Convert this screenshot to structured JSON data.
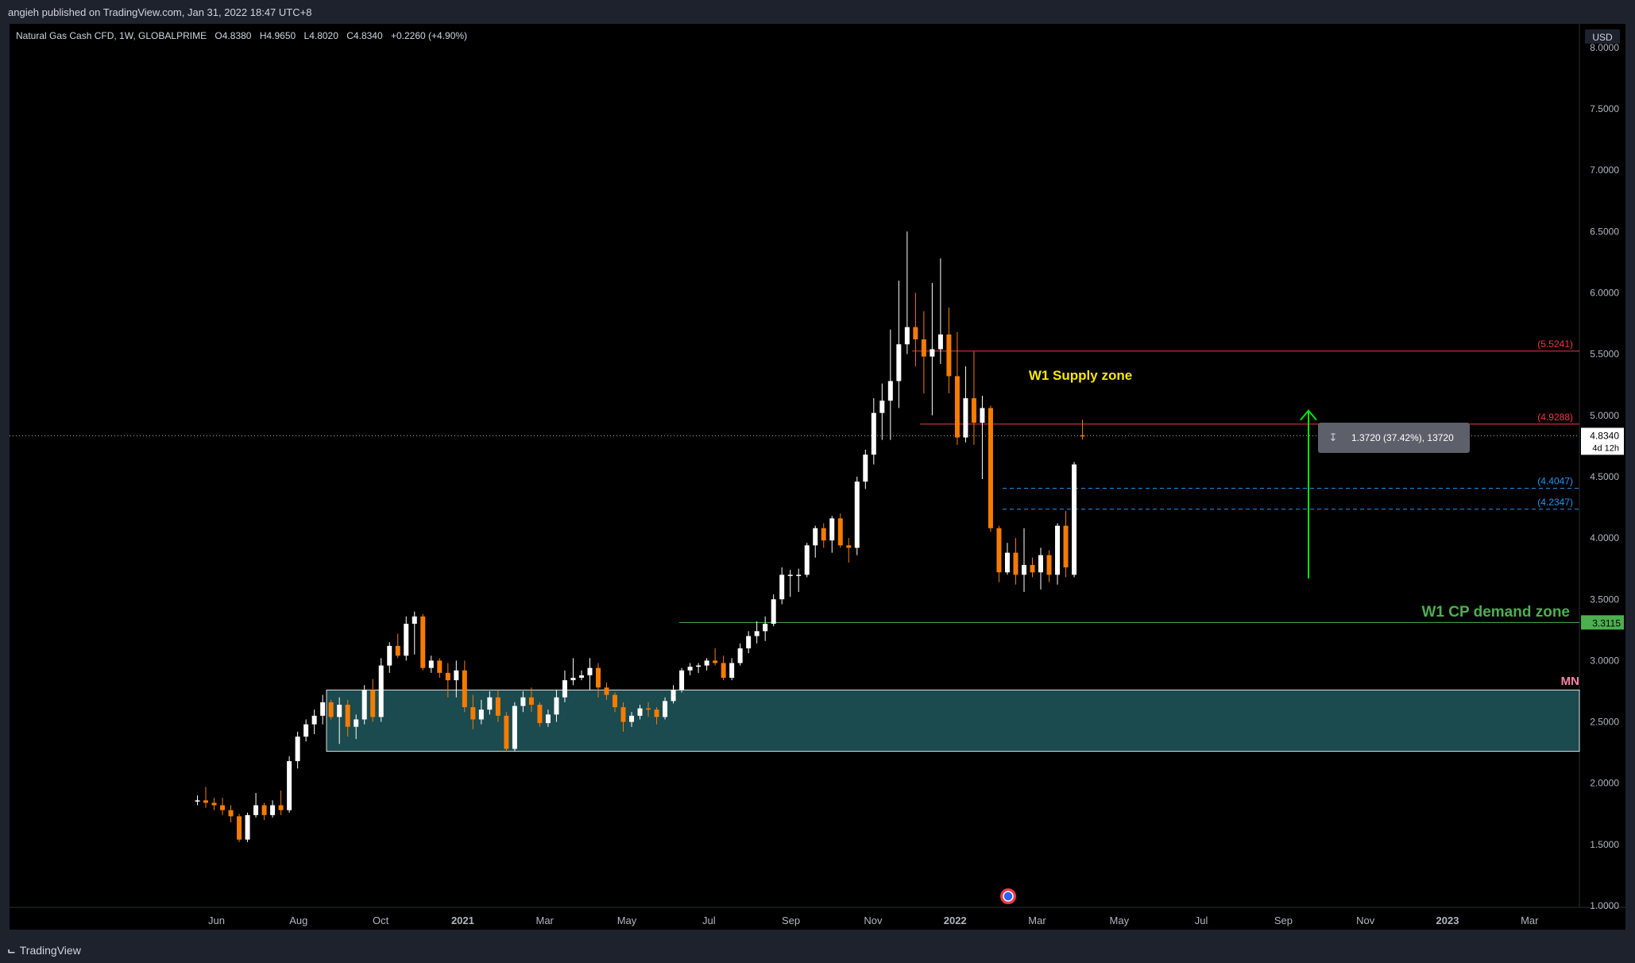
{
  "header": {
    "published_by": "angieh published on TradingView.com, Jan 31, 2022 18:47 UTC+8"
  },
  "legend": {
    "symbol": "Natural Gas Cash CFD, 1W, GLOBALPRIME",
    "open": "O4.8380",
    "high": "H4.9650",
    "low": "L4.8020",
    "close": "C4.8340",
    "change": "+0.2260 (+4.90%)"
  },
  "footer": {
    "brand": "TradingView",
    "brand_icon": "tradingview-logo-icon"
  },
  "price_axis": {
    "currency": "USD",
    "last_price": "4.8340",
    "countdown": "4d 12h",
    "ticks": [
      "8.0000",
      "7.5000",
      "7.0000",
      "6.5000",
      "6.0000",
      "5.5000",
      "5.0000",
      "4.5000",
      "4.0000",
      "3.5000",
      "3.0000",
      "2.5000",
      "2.0000",
      "1.5000",
      "1.0000"
    ]
  },
  "colors": {
    "background": "#000000",
    "up_candle": "#ffffff",
    "down_candle": "#f57c00",
    "supply_line": "#f23645",
    "level_blue": "#2196f3",
    "demand_line": "#4caf50",
    "zone_fill": "#1b4a4f",
    "supply_label": "#f7e600",
    "demand_label": "#4caf50",
    "measure_arrow": "#00e600"
  },
  "chart_data": {
    "type": "candlestick",
    "timeframe": "1W",
    "ylim": [
      1.0,
      8.2
    ],
    "time_labels": [
      "Jun",
      "Aug",
      "Oct",
      "2021",
      "Mar",
      "May",
      "Jul",
      "Sep",
      "Nov",
      "2022",
      "Mar",
      "May",
      "Jul",
      "Sep",
      "Nov",
      "2023",
      "Mar"
    ],
    "candles": [
      {
        "o": 1.85,
        "h": 1.9,
        "l": 1.82,
        "c": 1.86
      },
      {
        "o": 1.86,
        "h": 1.97,
        "l": 1.8,
        "c": 1.84
      },
      {
        "o": 1.84,
        "h": 1.88,
        "l": 1.78,
        "c": 1.82
      },
      {
        "o": 1.82,
        "h": 1.88,
        "l": 1.74,
        "c": 1.78
      },
      {
        "o": 1.78,
        "h": 1.82,
        "l": 1.68,
        "c": 1.73
      },
      {
        "o": 1.73,
        "h": 1.75,
        "l": 1.52,
        "c": 1.54
      },
      {
        "o": 1.54,
        "h": 1.76,
        "l": 1.52,
        "c": 1.74
      },
      {
        "o": 1.74,
        "h": 1.92,
        "l": 1.72,
        "c": 1.82
      },
      {
        "o": 1.82,
        "h": 1.84,
        "l": 1.7,
        "c": 1.74
      },
      {
        "o": 1.74,
        "h": 1.86,
        "l": 1.72,
        "c": 1.82
      },
      {
        "o": 1.82,
        "h": 1.94,
        "l": 1.74,
        "c": 1.78
      },
      {
        "o": 1.78,
        "h": 2.22,
        "l": 1.76,
        "c": 2.18
      },
      {
        "o": 2.18,
        "h": 2.42,
        "l": 2.12,
        "c": 2.38
      },
      {
        "o": 2.38,
        "h": 2.52,
        "l": 2.34,
        "c": 2.48
      },
      {
        "o": 2.48,
        "h": 2.6,
        "l": 2.4,
        "c": 2.55
      },
      {
        "o": 2.55,
        "h": 2.72,
        "l": 2.48,
        "c": 2.66
      },
      {
        "o": 2.66,
        "h": 2.68,
        "l": 2.52,
        "c": 2.54
      },
      {
        "o": 2.54,
        "h": 2.7,
        "l": 2.32,
        "c": 2.64
      },
      {
        "o": 2.64,
        "h": 2.68,
        "l": 2.38,
        "c": 2.46
      },
      {
        "o": 2.46,
        "h": 2.56,
        "l": 2.36,
        "c": 2.52
      },
      {
        "o": 2.52,
        "h": 2.8,
        "l": 2.48,
        "c": 2.76
      },
      {
        "o": 2.76,
        "h": 2.85,
        "l": 2.5,
        "c": 2.54
      },
      {
        "o": 2.54,
        "h": 3.02,
        "l": 2.5,
        "c": 2.96
      },
      {
        "o": 2.96,
        "h": 3.15,
        "l": 2.9,
        "c": 3.12
      },
      {
        "o": 3.12,
        "h": 3.22,
        "l": 3.02,
        "c": 3.04
      },
      {
        "o": 3.04,
        "h": 3.36,
        "l": 3.0,
        "c": 3.3
      },
      {
        "o": 3.3,
        "h": 3.4,
        "l": 3.05,
        "c": 3.36
      },
      {
        "o": 3.36,
        "h": 3.38,
        "l": 2.92,
        "c": 2.94
      },
      {
        "o": 2.94,
        "h": 3.04,
        "l": 2.9,
        "c": 3.0
      },
      {
        "o": 3.0,
        "h": 3.02,
        "l": 2.86,
        "c": 2.9
      },
      {
        "o": 2.9,
        "h": 2.98,
        "l": 2.7,
        "c": 2.84
      },
      {
        "o": 2.84,
        "h": 3.0,
        "l": 2.7,
        "c": 2.92
      },
      {
        "o": 2.92,
        "h": 3.0,
        "l": 2.58,
        "c": 2.62
      },
      {
        "o": 2.62,
        "h": 2.72,
        "l": 2.44,
        "c": 2.52
      },
      {
        "o": 2.52,
        "h": 2.68,
        "l": 2.48,
        "c": 2.6
      },
      {
        "o": 2.6,
        "h": 2.75,
        "l": 2.56,
        "c": 2.7
      },
      {
        "o": 2.7,
        "h": 2.76,
        "l": 2.5,
        "c": 2.55
      },
      {
        "o": 2.55,
        "h": 2.58,
        "l": 2.26,
        "c": 2.28
      },
      {
        "o": 2.28,
        "h": 2.66,
        "l": 2.26,
        "c": 2.63
      },
      {
        "o": 2.63,
        "h": 2.75,
        "l": 2.58,
        "c": 2.7
      },
      {
        "o": 2.7,
        "h": 2.78,
        "l": 2.58,
        "c": 2.64
      },
      {
        "o": 2.64,
        "h": 2.66,
        "l": 2.46,
        "c": 2.49
      },
      {
        "o": 2.49,
        "h": 2.6,
        "l": 2.46,
        "c": 2.56
      },
      {
        "o": 2.56,
        "h": 2.76,
        "l": 2.5,
        "c": 2.7
      },
      {
        "o": 2.7,
        "h": 2.92,
        "l": 2.66,
        "c": 2.84
      },
      {
        "o": 2.84,
        "h": 3.02,
        "l": 2.8,
        "c": 2.86
      },
      {
        "o": 2.86,
        "h": 2.92,
        "l": 2.84,
        "c": 2.88
      },
      {
        "o": 2.88,
        "h": 3.02,
        "l": 2.76,
        "c": 2.94
      },
      {
        "o": 2.94,
        "h": 2.98,
        "l": 2.7,
        "c": 2.78
      },
      {
        "o": 2.78,
        "h": 2.82,
        "l": 2.68,
        "c": 2.72
      },
      {
        "o": 2.72,
        "h": 2.74,
        "l": 2.58,
        "c": 2.62
      },
      {
        "o": 2.62,
        "h": 2.66,
        "l": 2.42,
        "c": 2.5
      },
      {
        "o": 2.5,
        "h": 2.58,
        "l": 2.46,
        "c": 2.55
      },
      {
        "o": 2.55,
        "h": 2.64,
        "l": 2.52,
        "c": 2.61
      },
      {
        "o": 2.61,
        "h": 2.66,
        "l": 2.54,
        "c": 2.6
      },
      {
        "o": 2.6,
        "h": 2.62,
        "l": 2.48,
        "c": 2.54
      },
      {
        "o": 2.54,
        "h": 2.7,
        "l": 2.52,
        "c": 2.67
      },
      {
        "o": 2.67,
        "h": 2.8,
        "l": 2.65,
        "c": 2.76
      },
      {
        "o": 2.76,
        "h": 2.94,
        "l": 2.74,
        "c": 2.92
      },
      {
        "o": 2.92,
        "h": 2.98,
        "l": 2.88,
        "c": 2.95
      },
      {
        "o": 2.95,
        "h": 2.98,
        "l": 2.9,
        "c": 2.96
      },
      {
        "o": 2.96,
        "h": 3.02,
        "l": 2.92,
        "c": 3.0
      },
      {
        "o": 3.0,
        "h": 3.1,
        "l": 2.96,
        "c": 2.98
      },
      {
        "o": 2.98,
        "h": 3.04,
        "l": 2.84,
        "c": 2.86
      },
      {
        "o": 2.86,
        "h": 3.02,
        "l": 2.84,
        "c": 2.98
      },
      {
        "o": 2.98,
        "h": 3.14,
        "l": 2.96,
        "c": 3.1
      },
      {
        "o": 3.1,
        "h": 3.24,
        "l": 3.06,
        "c": 3.2
      },
      {
        "o": 3.2,
        "h": 3.32,
        "l": 3.14,
        "c": 3.24
      },
      {
        "o": 3.24,
        "h": 3.36,
        "l": 3.16,
        "c": 3.3
      },
      {
        "o": 3.3,
        "h": 3.54,
        "l": 3.28,
        "c": 3.5
      },
      {
        "o": 3.5,
        "h": 3.76,
        "l": 3.46,
        "c": 3.7
      },
      {
        "o": 3.7,
        "h": 3.74,
        "l": 3.52,
        "c": 3.7
      },
      {
        "o": 3.7,
        "h": 3.75,
        "l": 3.56,
        "c": 3.7
      },
      {
        "o": 3.7,
        "h": 3.96,
        "l": 3.68,
        "c": 3.94
      },
      {
        "o": 3.94,
        "h": 4.1,
        "l": 3.84,
        "c": 4.08
      },
      {
        "o": 4.08,
        "h": 4.12,
        "l": 3.92,
        "c": 3.98
      },
      {
        "o": 3.98,
        "h": 4.18,
        "l": 3.88,
        "c": 4.16
      },
      {
        "o": 4.16,
        "h": 4.2,
        "l": 3.92,
        "c": 3.94
      },
      {
        "o": 3.94,
        "h": 4.0,
        "l": 3.8,
        "c": 3.92
      },
      {
        "o": 3.92,
        "h": 4.5,
        "l": 3.86,
        "c": 4.46
      },
      {
        "o": 4.46,
        "h": 4.72,
        "l": 4.4,
        "c": 4.68
      },
      {
        "o": 4.68,
        "h": 5.14,
        "l": 4.6,
        "c": 5.02
      },
      {
        "o": 5.02,
        "h": 5.26,
        "l": 4.8,
        "c": 5.12
      },
      {
        "o": 5.12,
        "h": 5.7,
        "l": 4.8,
        "c": 5.28
      },
      {
        "o": 5.28,
        "h": 6.1,
        "l": 5.06,
        "c": 5.58
      },
      {
        "o": 5.58,
        "h": 6.5,
        "l": 5.5,
        "c": 5.72
      },
      {
        "o": 5.72,
        "h": 6.0,
        "l": 5.4,
        "c": 5.62
      },
      {
        "o": 5.62,
        "h": 5.85,
        "l": 5.18,
        "c": 5.48
      },
      {
        "o": 5.48,
        "h": 6.08,
        "l": 5.0,
        "c": 5.54
      },
      {
        "o": 5.54,
        "h": 6.28,
        "l": 5.42,
        "c": 5.66
      },
      {
        "o": 5.66,
        "h": 5.88,
        "l": 5.18,
        "c": 5.32
      },
      {
        "o": 5.32,
        "h": 5.68,
        "l": 4.76,
        "c": 4.82
      },
      {
        "o": 4.82,
        "h": 5.4,
        "l": 4.78,
        "c": 5.14
      },
      {
        "o": 5.14,
        "h": 5.52,
        "l": 4.76,
        "c": 4.94
      },
      {
        "o": 4.94,
        "h": 5.16,
        "l": 4.48,
        "c": 5.06
      },
      {
        "o": 5.06,
        "h": 5.08,
        "l": 4.05,
        "c": 4.08
      },
      {
        "o": 4.08,
        "h": 4.1,
        "l": 3.64,
        "c": 3.72
      },
      {
        "o": 3.72,
        "h": 3.96,
        "l": 3.7,
        "c": 3.88
      },
      {
        "o": 3.88,
        "h": 4.0,
        "l": 3.62,
        "c": 3.7
      },
      {
        "o": 3.7,
        "h": 4.08,
        "l": 3.56,
        "c": 3.78
      },
      {
        "o": 3.78,
        "h": 3.84,
        "l": 3.68,
        "c": 3.72
      },
      {
        "o": 3.72,
        "h": 3.92,
        "l": 3.58,
        "c": 3.86
      },
      {
        "o": 3.86,
        "h": 3.9,
        "l": 3.64,
        "c": 3.7
      },
      {
        "o": 3.7,
        "h": 4.12,
        "l": 3.62,
        "c": 4.1
      },
      {
        "o": 4.1,
        "h": 4.22,
        "l": 3.68,
        "c": 3.76
      },
      {
        "o": 3.7,
        "h": 4.62,
        "l": 3.68,
        "c": 4.6
      },
      {
        "o": 4.838,
        "h": 4.965,
        "l": 4.802,
        "c": 4.834
      }
    ],
    "levels": [
      {
        "name": "supply-upper",
        "value": 5.5241,
        "label": "(5.5241)",
        "style": "solid",
        "color": "#f23645"
      },
      {
        "name": "supply-lower",
        "value": 4.9288,
        "label": "(4.9288)",
        "style": "solid",
        "color": "#f23645"
      },
      {
        "name": "blue-upper",
        "value": 4.4047,
        "label": "(4.4047)",
        "style": "dashed",
        "color": "#2196f3"
      },
      {
        "name": "blue-lower",
        "value": 4.2347,
        "label": "(4.2347)",
        "style": "dashed",
        "color": "#2196f3"
      },
      {
        "name": "demand",
        "value": 3.3115,
        "label": "3.3115",
        "style": "solid",
        "color": "#4caf50"
      }
    ],
    "zone": {
      "top": 2.76,
      "bottom": 2.26
    },
    "annotations": {
      "supply": "W1 Supply zone",
      "demand": "W1 CP demand zone",
      "edge": "MN",
      "measure": "1.3720 (37.42%), 13720",
      "measure_from": 3.67,
      "measure_to": 5.04
    }
  }
}
